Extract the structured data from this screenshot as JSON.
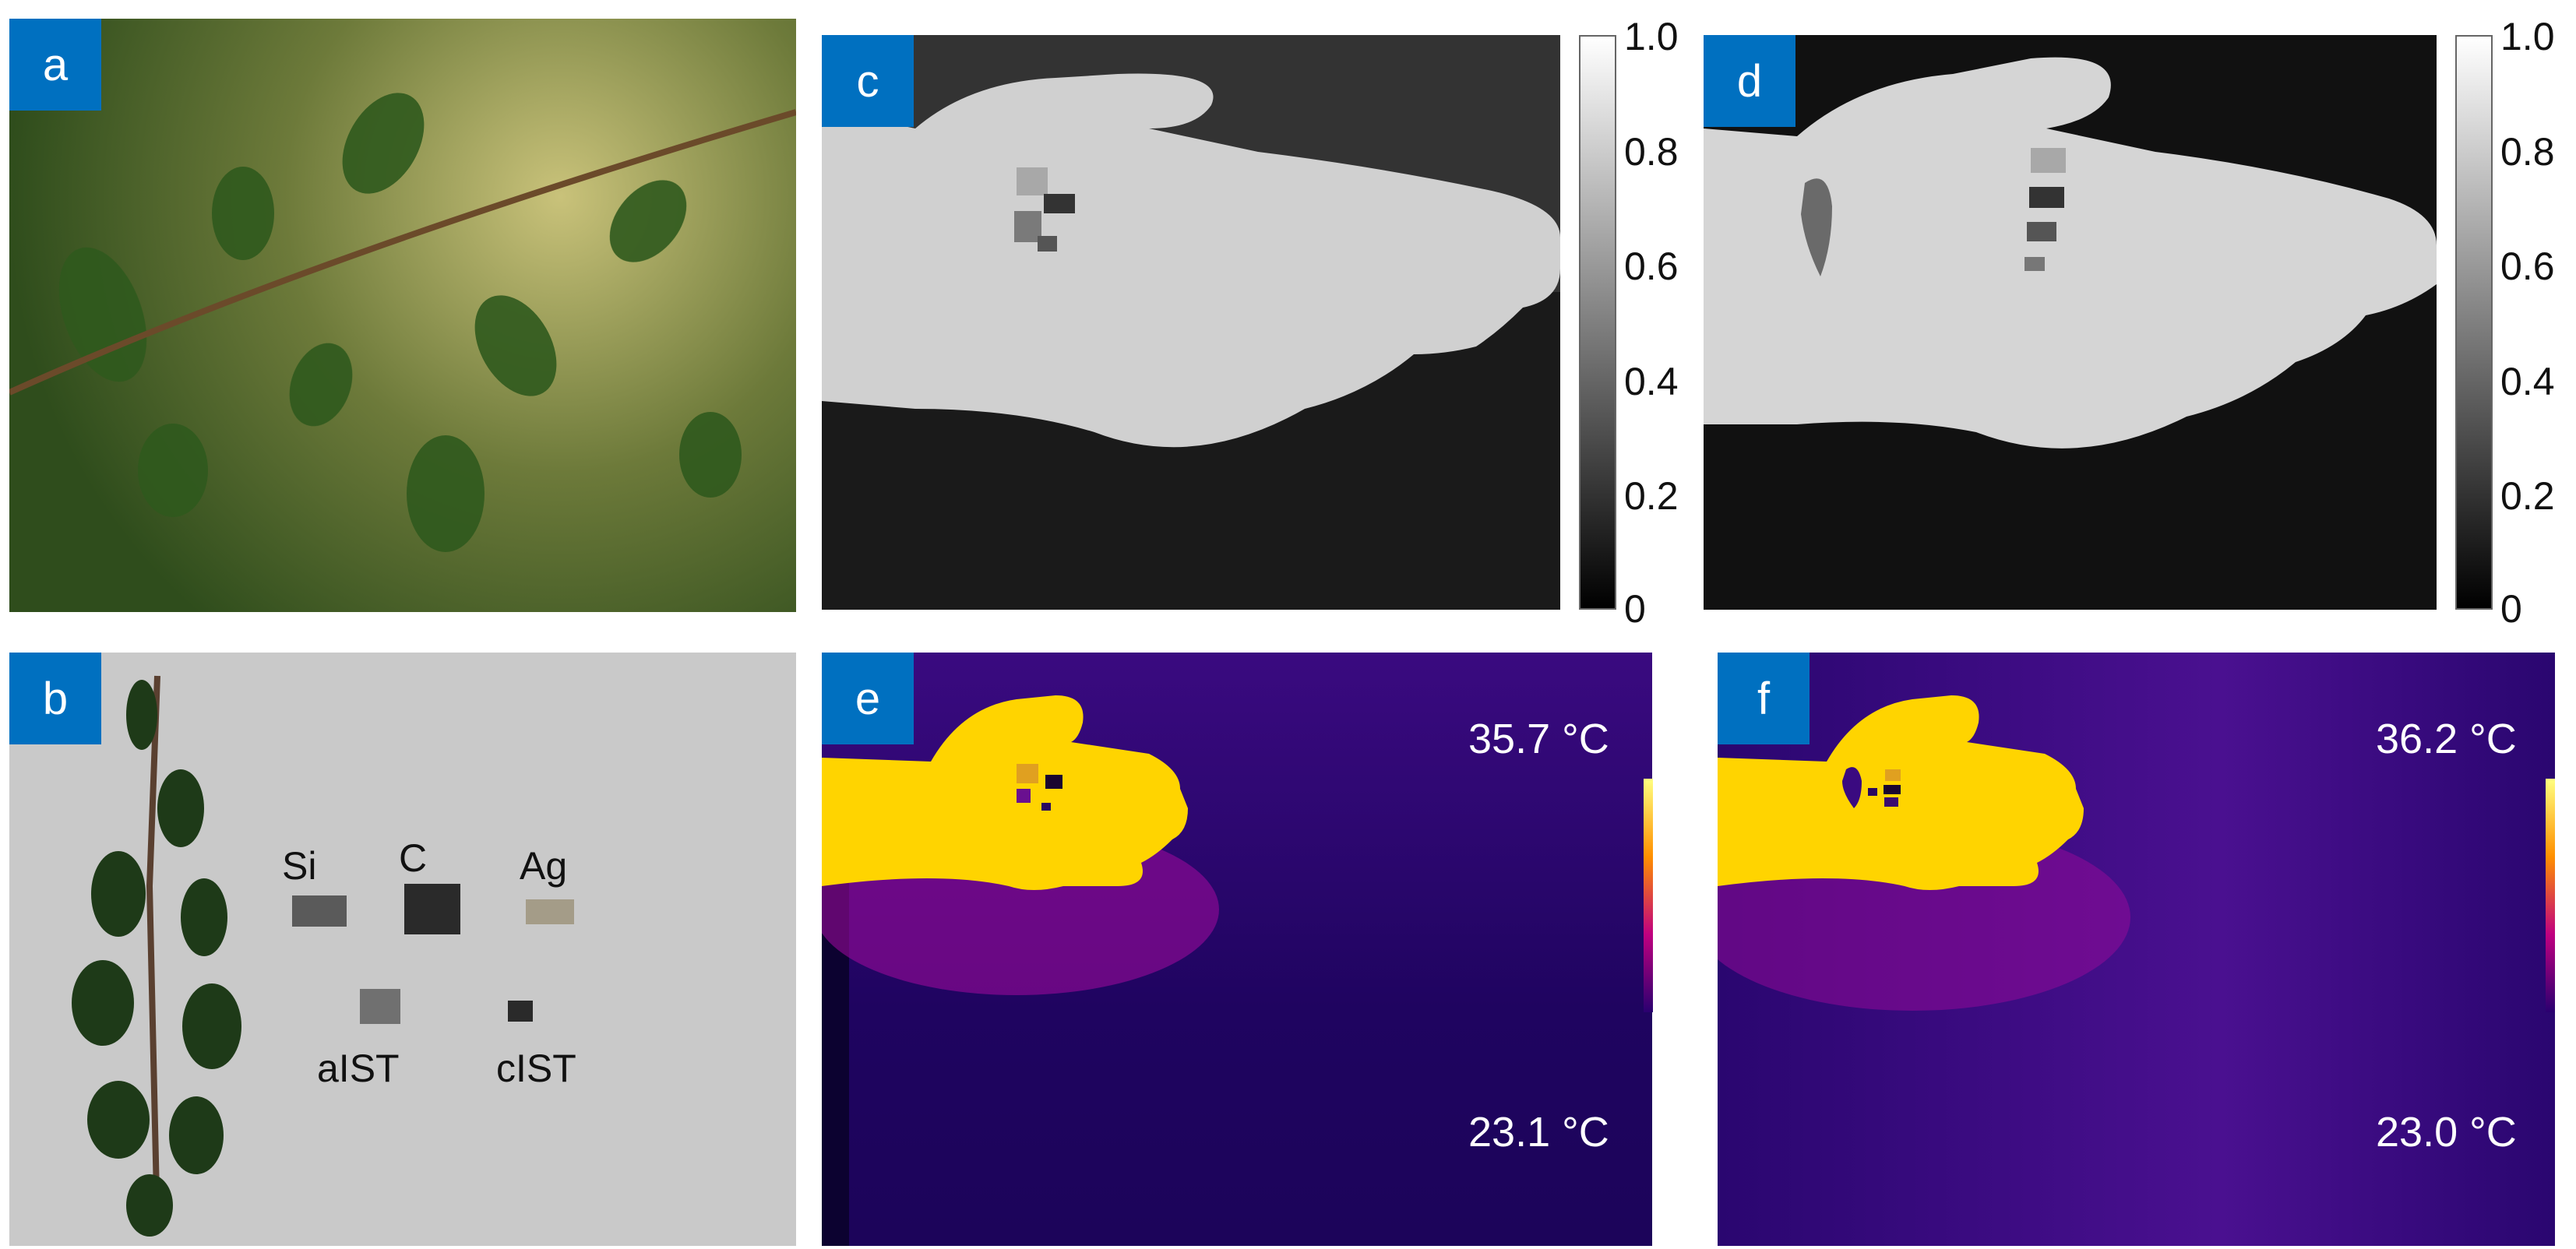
{
  "panels": {
    "a": {
      "label": "a"
    },
    "b": {
      "label": "b",
      "samples": [
        "Si",
        "C",
        "Ag",
        "aIST",
        "cIST"
      ]
    },
    "c": {
      "label": "c"
    },
    "d": {
      "label": "d"
    },
    "e": {
      "label": "e",
      "max_temp": "35.7 °C",
      "min_temp": "23.1 °C"
    },
    "f": {
      "label": "f",
      "max_temp": "36.2 °C",
      "min_temp": "23.0 °C"
    }
  },
  "colorbar_ticks": [
    "1.0",
    "0.8",
    "0.6",
    "0.4",
    "0.2",
    "0"
  ],
  "colors": {
    "label_bg": "#0070c0",
    "thermal_bg": "#2a0a6a",
    "thermal_hand": "#ffd400",
    "leaf": "#2f5a1e"
  }
}
